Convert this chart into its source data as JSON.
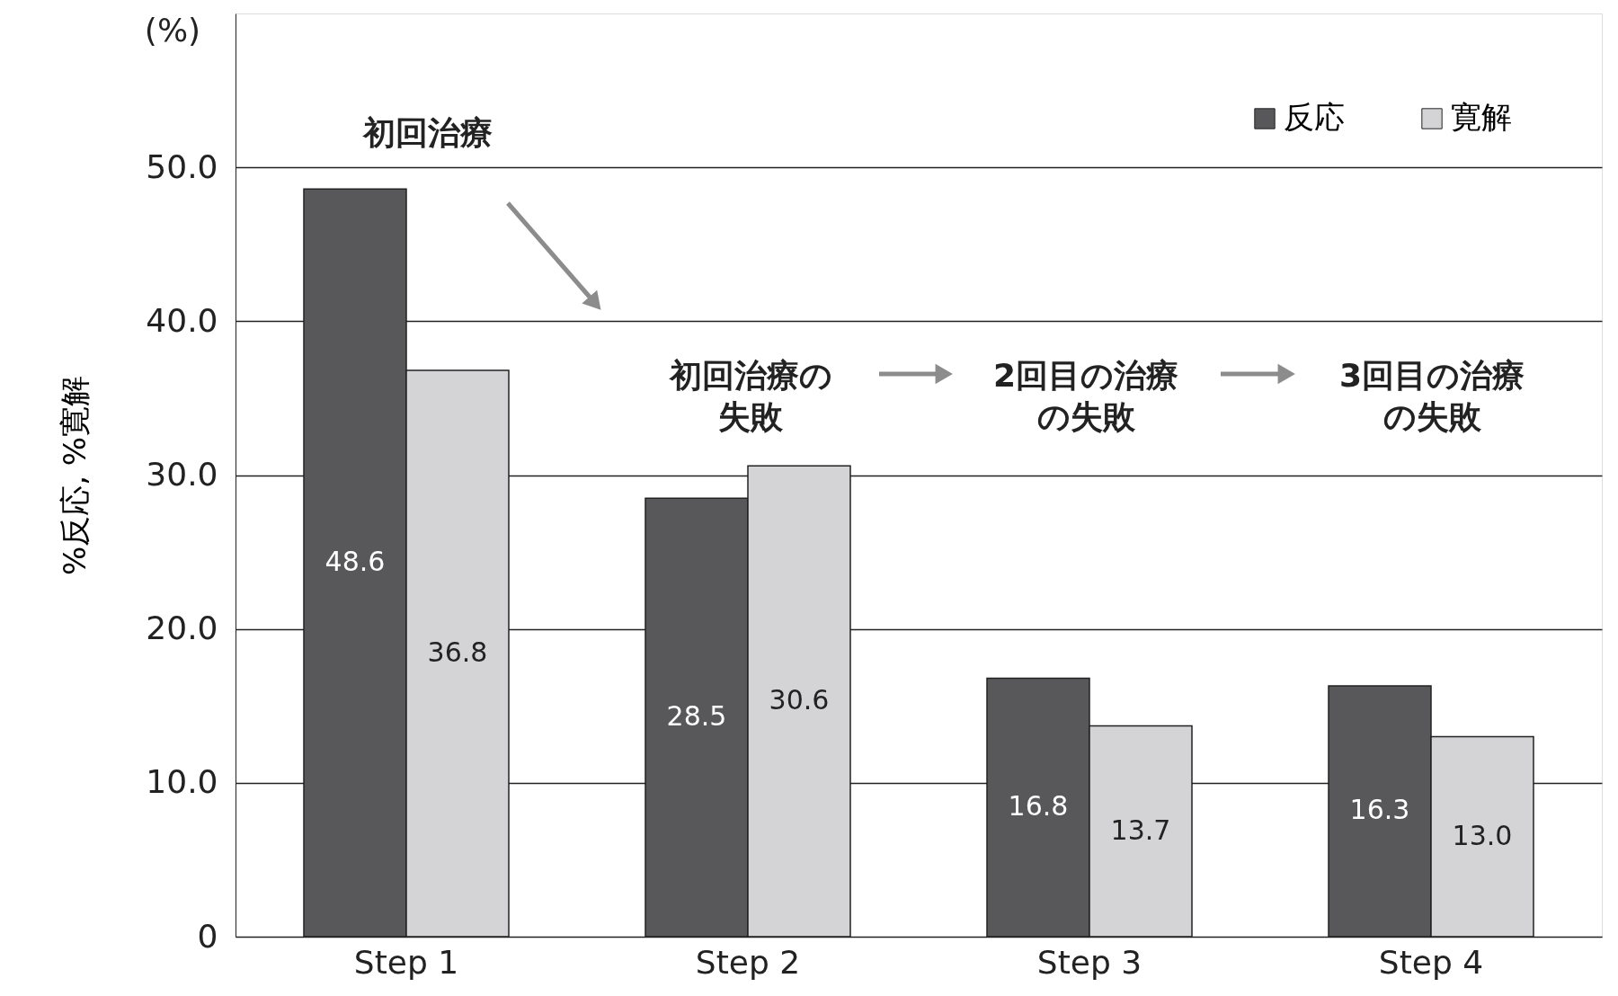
{
  "chart_data": {
    "type": "bar",
    "ylabel": "%反応, %寛解",
    "categories": [
      "Step 1",
      "Step 2",
      "Step 3",
      "Step 4"
    ],
    "series": [
      {
        "name": "反応",
        "color": "#58585a",
        "values": [
          48.6,
          28.5,
          16.8,
          16.3
        ],
        "value_labels": [
          "48.6",
          "28.5",
          "16.8",
          "16.3"
        ]
      },
      {
        "name": "寛解",
        "color": "#d4d4d6",
        "values": [
          36.8,
          30.6,
          13.7,
          13.0
        ],
        "value_labels": [
          "36.8",
          "30.6",
          "13.7",
          "13.0"
        ]
      }
    ],
    "ylim": [
      0,
      60
    ],
    "yticks": [
      0,
      {
        "value": 10,
        "label": "10.0"
      },
      {
        "value": 20,
        "label": "20.0"
      },
      {
        "value": 30,
        "label": "30.0"
      },
      {
        "value": 40,
        "label": "40.0"
      },
      {
        "value": 50,
        "label": "50.0"
      }
    ],
    "grid": "y",
    "legend": "top right",
    "annotations": [
      "(%)",
      "初回治療",
      "初回治療の失敗",
      "2回目の治療の失敗",
      "3回目の治療の失敗"
    ]
  }
}
